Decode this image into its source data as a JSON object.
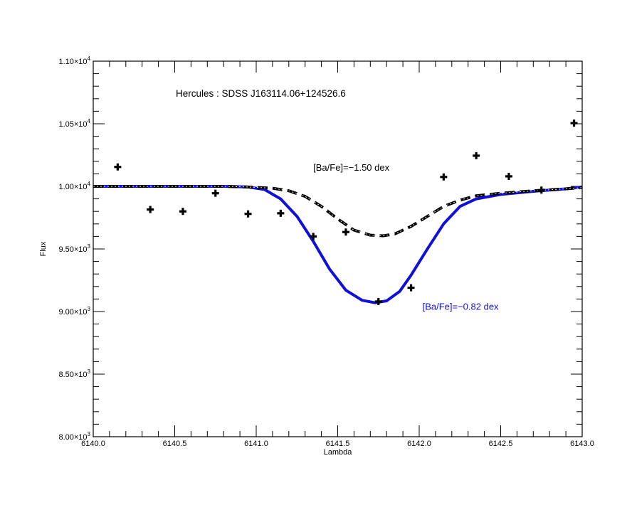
{
  "chart_data": {
    "type": "line",
    "title": "Hercules : SDSS J163114.06+124526.6",
    "xlabel": "Lambda",
    "ylabel": "Flux",
    "xlim": [
      6140.0,
      6143.0
    ],
    "ylim": [
      8000,
      11000
    ],
    "grid": false,
    "xticks": [
      6140.0,
      6140.5,
      6141.0,
      6141.5,
      6142.0,
      6142.5,
      6143.0
    ],
    "xtick_labels": [
      "6140.0",
      "6140.5",
      "6141.0",
      "6141.5",
      "6142.0",
      "6142.5",
      "6143.0"
    ],
    "yticks": [
      {
        "value": 8000,
        "mantissa": "8.00",
        "exp": "3"
      },
      {
        "value": 8500,
        "mantissa": "8.50",
        "exp": "3"
      },
      {
        "value": 9000,
        "mantissa": "9.00",
        "exp": "3"
      },
      {
        "value": 9500,
        "mantissa": "9.50",
        "exp": "3"
      },
      {
        "value": 10000,
        "mantissa": "1.00",
        "exp": "4"
      },
      {
        "value": 10500,
        "mantissa": "1.05",
        "exp": "4"
      },
      {
        "value": 11000,
        "mantissa": "1.10",
        "exp": "4"
      }
    ],
    "tick_mult": "×10",
    "series": [
      {
        "name": "[Ba/Fe]=−1.50 dex",
        "color": "#000000",
        "style": "dashed",
        "x": [
          6140.0,
          6140.5,
          6140.8,
          6140.95,
          6141.1,
          6141.2,
          6141.3,
          6141.4,
          6141.5,
          6141.6,
          6141.7,
          6141.78,
          6141.85,
          6141.95,
          6142.05,
          6142.15,
          6142.25,
          6142.35,
          6142.5,
          6142.7,
          6142.9,
          6143.0
        ],
        "y": [
          10000,
          10000,
          10000,
          9995,
          9985,
          9965,
          9920,
          9840,
          9740,
          9650,
          9610,
          9605,
          9620,
          9680,
          9760,
          9840,
          9890,
          9925,
          9945,
          9965,
          9980,
          9990
        ]
      },
      {
        "name": "[Ba/Fe]=−0.82 dex",
        "color": "#1010d8",
        "style": "solid",
        "x": [
          6140.0,
          6140.5,
          6140.8,
          6140.95,
          6141.05,
          6141.15,
          6141.25,
          6141.35,
          6141.45,
          6141.55,
          6141.65,
          6141.73,
          6141.8,
          6141.88,
          6141.95,
          6142.05,
          6142.15,
          6142.25,
          6142.35,
          6142.5,
          6142.7,
          6142.9,
          6143.0
        ],
        "y": [
          10000,
          10000,
          10000,
          9995,
          9975,
          9900,
          9760,
          9560,
          9340,
          9170,
          9090,
          9070,
          9085,
          9160,
          9290,
          9500,
          9700,
          9840,
          9900,
          9935,
          9960,
          9980,
          9995
        ]
      }
    ],
    "observed": {
      "name": "observed",
      "marker": "plus",
      "x": [
        6140.15,
        6140.35,
        6140.55,
        6140.75,
        6140.95,
        6141.15,
        6141.35,
        6141.55,
        6141.75,
        6141.95,
        6142.15,
        6142.35,
        6142.55,
        6142.75,
        6142.95
      ],
      "y": [
        10155,
        9815,
        9800,
        9945,
        9780,
        9785,
        9600,
        9635,
        9080,
        9190,
        10075,
        10245,
        10080,
        9970,
        10505
      ]
    },
    "annotations": [
      {
        "text": "[Ba/Fe]=−1.50 dex",
        "x": 6141.35,
        "y": 10125,
        "color": "#000000"
      },
      {
        "text": "[Ba/Fe]=−0.82 dex",
        "x": 6142.02,
        "y": 9015,
        "color": "#1010d8"
      }
    ]
  }
}
